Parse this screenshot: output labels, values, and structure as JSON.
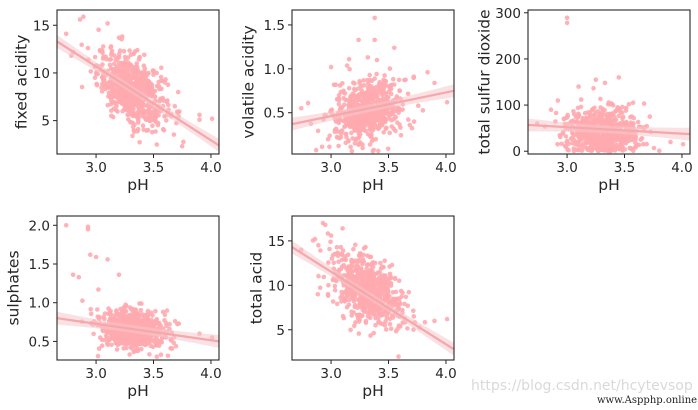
{
  "watermark": {
    "blog": "https://blog.csdn.net/hcytevsop",
    "site": "www.Aspphp.online"
  },
  "style": {
    "point_color": "#ffaaaf",
    "line_color": "#f6a7ab",
    "band_color": "#f6c9cc",
    "axis_color": "#262626"
  },
  "chart_data": [
    {
      "type": "scatter",
      "xlabel": "pH",
      "ylabel": "fixed acidity",
      "xlim": [
        2.66,
        4.07
      ],
      "ylim": [
        1.5,
        16.6
      ],
      "xticks": [
        3.0,
        3.5,
        4.0
      ],
      "xtick_labels": [
        "3.0",
        "3.5",
        "4.0"
      ],
      "yticks": [
        5,
        10,
        15
      ],
      "ytick_labels": [
        "5",
        "10",
        "15"
      ],
      "cluster": {
        "x_center": 3.31,
        "x_spread": 0.15,
        "y_center": 8.3,
        "y_spread": 1.7,
        "slope": -5.5
      },
      "outliers": [
        [
          2.86,
          15.6
        ],
        [
          2.89,
          15.9
        ],
        [
          2.74,
          14.1
        ],
        [
          3.1,
          15.2
        ],
        [
          3.2,
          13.7
        ],
        [
          3.42,
          11.9
        ],
        [
          3.9,
          5.1
        ],
        [
          3.9,
          5.6
        ],
        [
          4.01,
          5.2
        ],
        [
          3.72,
          5.4
        ],
        [
          2.8,
          12.2
        ],
        [
          2.93,
          12.6
        ]
      ],
      "regression": {
        "x": [
          2.66,
          4.07
        ],
        "y": [
          13.3,
          2.4
        ]
      }
    },
    {
      "type": "scatter",
      "xlabel": "pH",
      "ylabel": "volatile acidity",
      "xlim": [
        2.66,
        4.07
      ],
      "ylim": [
        0.03,
        1.67
      ],
      "xticks": [
        3.0,
        3.5,
        4.0
      ],
      "xtick_labels": [
        "3.0",
        "3.5",
        "4.0"
      ],
      "yticks": [
        0.5,
        1.0,
        1.5
      ],
      "ytick_labels": [
        "0.5",
        "1.0",
        "1.5"
      ],
      "cluster": {
        "x_center": 3.31,
        "x_spread": 0.15,
        "y_center": 0.52,
        "y_spread": 0.17,
        "slope": 0.27
      },
      "outliers": [
        [
          3.38,
          1.58
        ],
        [
          3.24,
          1.33
        ],
        [
          3.38,
          1.33
        ],
        [
          3.55,
          1.24
        ],
        [
          3.32,
          1.13
        ],
        [
          3.72,
          0.91
        ],
        [
          3.84,
          0.96
        ],
        [
          3.9,
          0.84
        ],
        [
          2.74,
          0.55
        ],
        [
          2.8,
          0.61
        ],
        [
          4.01,
          0.62
        ],
        [
          3.0,
          1.02
        ]
      ],
      "regression": {
        "x": [
          2.66,
          4.07
        ],
        "y": [
          0.37,
          0.75
        ]
      }
    },
    {
      "type": "scatter",
      "xlabel": "pH",
      "ylabel": "total sulfur dioxide",
      "xlim": [
        2.66,
        4.07
      ],
      "ylim": [
        -6,
        306
      ],
      "xticks": [
        3.0,
        3.5,
        4.0
      ],
      "xtick_labels": [
        "3.0",
        "3.5",
        "4.0"
      ],
      "yticks": [
        0,
        100,
        200,
        300
      ],
      "ytick_labels": [
        "0",
        "100",
        "200",
        "300"
      ],
      "cluster": {
        "x_center": 3.31,
        "x_spread": 0.15,
        "y_center": 42,
        "y_spread": 27,
        "slope": -10
      },
      "outliers": [
        [
          3.0,
          289
        ],
        [
          3.0,
          278
        ],
        [
          3.45,
          160
        ],
        [
          3.25,
          155
        ],
        [
          3.33,
          148
        ],
        [
          2.86,
          90
        ],
        [
          2.92,
          110
        ],
        [
          3.72,
          75
        ],
        [
          3.9,
          20
        ],
        [
          4.01,
          15
        ],
        [
          2.74,
          60
        ],
        [
          3.1,
          140
        ]
      ],
      "regression": {
        "x": [
          2.66,
          4.07
        ],
        "y": [
          57,
          37
        ]
      }
    },
    {
      "type": "scatter",
      "xlabel": "pH",
      "ylabel": "sulphates",
      "xlim": [
        2.66,
        4.07
      ],
      "ylim": [
        0.26,
        2.12
      ],
      "xticks": [
        3.0,
        3.5,
        4.0
      ],
      "xtick_labels": [
        "3.0",
        "3.5",
        "4.0"
      ],
      "yticks": [
        0.5,
        1.0,
        1.5,
        2.0
      ],
      "ytick_labels": [
        "0.5",
        "1.0",
        "1.5",
        "2.0"
      ],
      "cluster": {
        "x_center": 3.31,
        "x_spread": 0.15,
        "y_center": 0.66,
        "y_spread": 0.13,
        "slope": -0.2
      },
      "outliers": [
        [
          2.74,
          2.0
        ],
        [
          2.93,
          1.98
        ],
        [
          2.93,
          1.95
        ],
        [
          2.95,
          1.62
        ],
        [
          3.0,
          1.59
        ],
        [
          2.8,
          1.36
        ],
        [
          2.85,
          1.33
        ],
        [
          3.1,
          1.56
        ],
        [
          3.2,
          1.36
        ],
        [
          3.02,
          1.17
        ],
        [
          3.9,
          0.6
        ],
        [
          4.01,
          0.55
        ],
        [
          3.72,
          0.73
        ]
      ],
      "regression": {
        "x": [
          2.66,
          4.07
        ],
        "y": [
          0.8,
          0.5
        ]
      }
    },
    {
      "type": "scatter",
      "xlabel": "pH",
      "ylabel": "total acid",
      "xlim": [
        2.66,
        4.07
      ],
      "ylim": [
        1.6,
        17.8
      ],
      "xticks": [
        3.0,
        3.5,
        4.0
      ],
      "xtick_labels": [
        "3.0",
        "3.5",
        "4.0"
      ],
      "yticks": [
        5,
        10,
        15
      ],
      "ytick_labels": [
        "5",
        "10",
        "15"
      ],
      "cluster": {
        "x_center": 3.31,
        "x_spread": 0.15,
        "y_center": 9.6,
        "y_spread": 1.8,
        "slope": -6.0
      },
      "outliers": [
        [
          2.93,
          17.0
        ],
        [
          2.95,
          16.8
        ],
        [
          3.1,
          16.4
        ],
        [
          3.0,
          15.6
        ],
        [
          2.86,
          15.2
        ],
        [
          2.89,
          14.5
        ],
        [
          3.9,
          6.0
        ],
        [
          4.01,
          6.2
        ],
        [
          3.72,
          6.5
        ],
        [
          2.74,
          14.0
        ],
        [
          3.3,
          14.3
        ]
      ],
      "regression": {
        "x": [
          2.66,
          4.07
        ],
        "y": [
          14.3,
          2.8
        ]
      }
    }
  ]
}
